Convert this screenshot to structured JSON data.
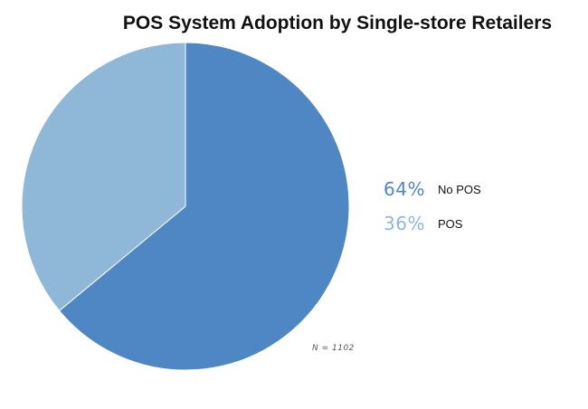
{
  "chart_data": {
    "type": "pie",
    "title": "POS System Adoption by Single-store Retailers",
    "slices": [
      {
        "label": "No POS",
        "value": 64,
        "value_label": "64%",
        "color": "#4f87c4"
      },
      {
        "label": "POS",
        "value": 36,
        "value_label": "36%",
        "color": "#8fb7d8"
      }
    ],
    "legend_position": "right",
    "note": "N = 1102"
  }
}
